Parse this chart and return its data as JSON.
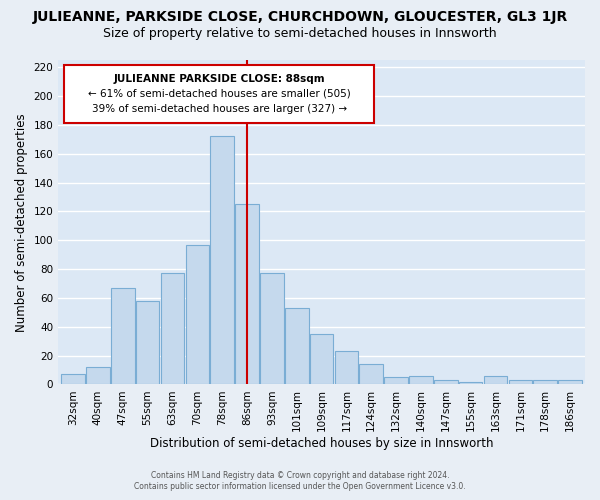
{
  "title": "JULIEANNE, PARKSIDE CLOSE, CHURCHDOWN, GLOUCESTER, GL3 1JR",
  "subtitle": "Size of property relative to semi-detached houses in Innsworth",
  "xlabel": "Distribution of semi-detached houses by size in Innsworth",
  "ylabel": "Number of semi-detached properties",
  "categories": [
    "32sqm",
    "40sqm",
    "47sqm",
    "55sqm",
    "63sqm",
    "70sqm",
    "78sqm",
    "86sqm",
    "93sqm",
    "101sqm",
    "109sqm",
    "117sqm",
    "124sqm",
    "132sqm",
    "140sqm",
    "147sqm",
    "155sqm",
    "163sqm",
    "171sqm",
    "178sqm",
    "186sqm"
  ],
  "values": [
    7,
    12,
    67,
    58,
    77,
    97,
    172,
    125,
    77,
    53,
    35,
    23,
    14,
    5,
    6,
    3,
    2,
    6,
    3,
    3,
    3
  ],
  "bar_color": "#c5d9ed",
  "bar_edge_color": "#7aadd4",
  "vline_x": 7,
  "vline_color": "#cc0000",
  "annotation_title": "JULIEANNE PARKSIDE CLOSE: 88sqm",
  "annotation_line1": "← 61% of semi-detached houses are smaller (505)",
  "annotation_line2": "39% of semi-detached houses are larger (327) →",
  "annotation_box_color": "#ffffff",
  "annotation_box_edge_color": "#cc0000",
  "ylim": [
    0,
    225
  ],
  "yticks": [
    0,
    20,
    40,
    60,
    80,
    100,
    120,
    140,
    160,
    180,
    200,
    220
  ],
  "footer1": "Contains HM Land Registry data © Crown copyright and database right 2024.",
  "footer2": "Contains public sector information licensed under the Open Government Licence v3.0.",
  "background_color": "#e8eef5",
  "plot_background_color": "#dce8f5",
  "grid_color": "#ffffff",
  "title_fontsize": 10,
  "subtitle_fontsize": 9,
  "axis_label_fontsize": 8.5,
  "tick_fontsize": 7.5
}
